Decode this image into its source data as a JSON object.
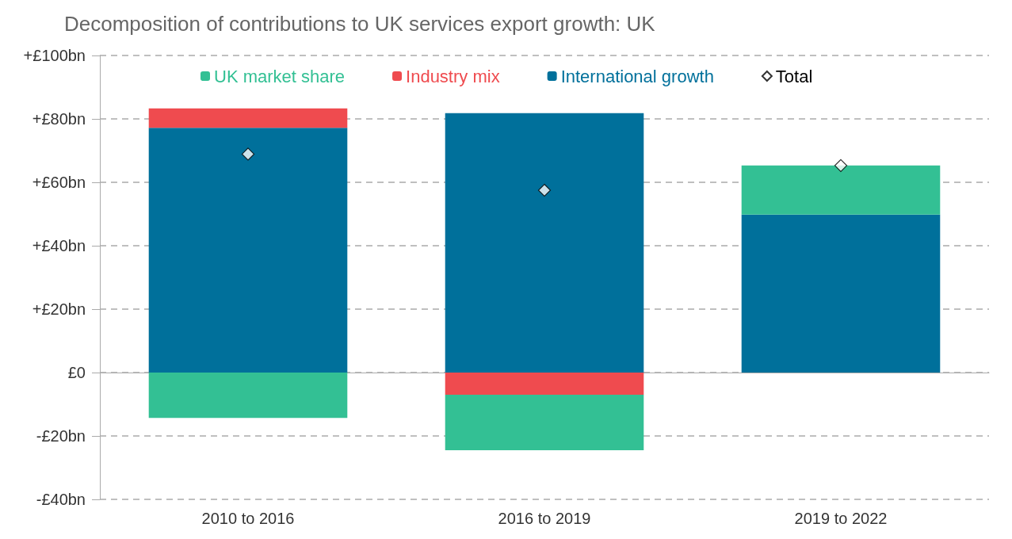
{
  "chart_data": {
    "type": "bar",
    "title": "Decomposition of contributions to UK services export growth: UK",
    "categories": [
      "2010 to 2016",
      "2016 to 2019",
      "2019 to 2022"
    ],
    "stacked": true,
    "series": [
      {
        "name": "International growth",
        "color": "#00709b",
        "values": [
          77.2,
          81.8,
          49.8
        ]
      },
      {
        "name": "Industry mix",
        "color": "#ef4b4f",
        "values": [
          6.1,
          -7.0,
          null
        ]
      },
      {
        "name": "UK market share",
        "color": "#33c094",
        "values": [
          -14.3,
          -17.5,
          15.5
        ]
      },
      {
        "name": "Total",
        "type": "scatter",
        "color": "#ffffff",
        "x": [
          "2010 to 2016",
          "2016 to 2019",
          "2019 to 2022"
        ],
        "values": [
          68.9,
          57.5,
          65.3
        ]
      }
    ],
    "marker": "diamond",
    "ylim": [
      -40,
      100
    ],
    "yticks": [
      {
        "value": -40,
        "label": "-£40bn"
      },
      {
        "value": -20,
        "label": "-£20bn"
      },
      {
        "value": 0,
        "label": "£0"
      },
      {
        "value": 20,
        "label": "+£20bn"
      },
      {
        "value": 40,
        "label": "+£40bn"
      },
      {
        "value": 60,
        "label": "+£60bn"
      },
      {
        "value": 80,
        "label": "+£80bn"
      },
      {
        "value": 100,
        "label": "+£100bn"
      }
    ],
    "grid": "y",
    "legend": "top"
  }
}
